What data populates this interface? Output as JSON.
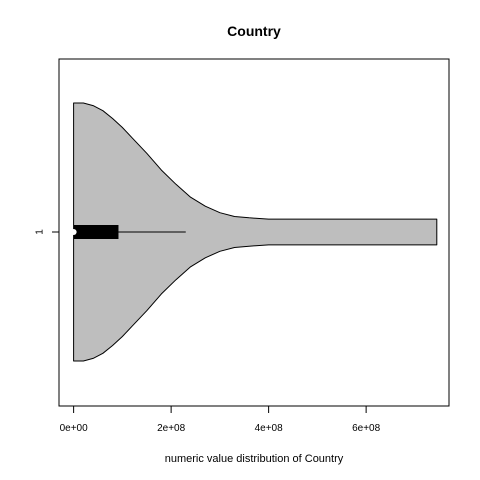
{
  "chart_data": {
    "type": "violin",
    "title": "Country",
    "xlabel": "numeric value distribution of Country",
    "ylabel": "",
    "orientation": "horizontal",
    "group_label": "1",
    "xlim": [
      -30000000,
      770000000
    ],
    "x_ticks": [
      0,
      200000000,
      400000000,
      600000000
    ],
    "x_tick_labels": [
      "0e+00",
      "2e+08",
      "4e+08",
      "6e+08"
    ],
    "fill_color": "#bebebe",
    "density_profile": {
      "x": [
        0,
        10000000,
        20000000,
        40000000,
        60000000,
        80000000,
        100000000,
        120000000,
        150000000,
        180000000,
        210000000,
        240000000,
        270000000,
        300000000,
        330000000,
        360000000,
        400000000,
        450000000,
        500000000,
        550000000,
        600000000,
        650000000,
        700000000,
        745000000
      ],
      "half_width": [
        1.0,
        1.0,
        1.0,
        0.98,
        0.94,
        0.88,
        0.81,
        0.73,
        0.61,
        0.48,
        0.37,
        0.27,
        0.2,
        0.15,
        0.12,
        0.11,
        0.1,
        0.1,
        0.1,
        0.1,
        0.1,
        0.1,
        0.1,
        0.1
      ]
    },
    "box": {
      "q1": 0,
      "median": 0,
      "q3": 92000000,
      "whisker_low": 0,
      "whisker_high": 230000000
    }
  }
}
